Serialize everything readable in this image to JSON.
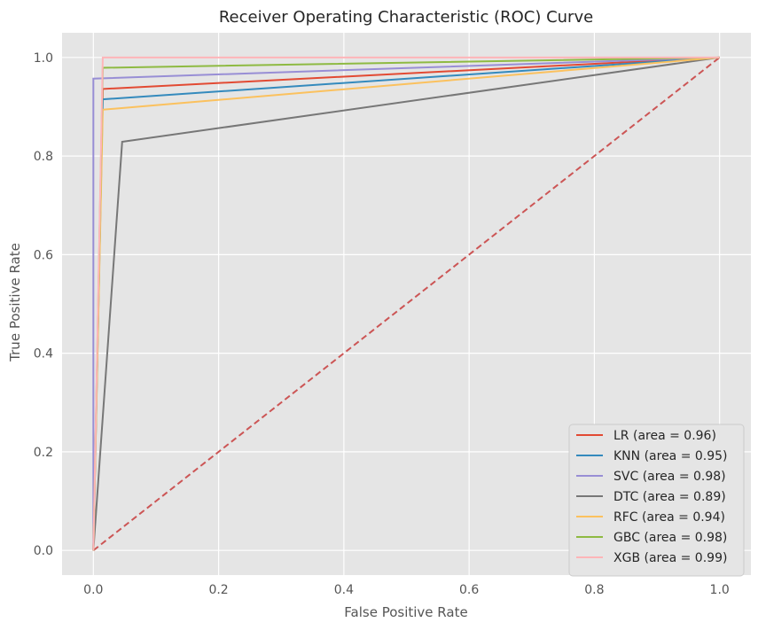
{
  "chart_data": {
    "type": "line",
    "title": "Receiver Operating Characteristic (ROC) Curve",
    "xlabel": "False Positive Rate",
    "ylabel": "True Positive Rate",
    "xlim": [
      -0.05,
      1.05
    ],
    "ylim": [
      -0.05,
      1.05
    ],
    "xticks": [
      "0.0",
      "0.2",
      "0.4",
      "0.6",
      "0.8",
      "1.0"
    ],
    "yticks": [
      "0.0",
      "0.2",
      "0.4",
      "0.6",
      "0.8",
      "1.0"
    ],
    "grid": true,
    "legend_position": "lower-right",
    "series": [
      {
        "name": "LR (area = 0.96)",
        "color": "#E24A33",
        "x": [
          0,
          0.015,
          1
        ],
        "y": [
          0,
          0.936,
          1
        ]
      },
      {
        "name": "KNN (area = 0.95)",
        "color": "#348ABD",
        "x": [
          0,
          0.015,
          1
        ],
        "y": [
          0,
          0.915,
          1
        ]
      },
      {
        "name": "SVC (area = 0.98)",
        "color": "#988ED5",
        "x": [
          0,
          0,
          1
        ],
        "y": [
          0,
          0.957,
          1
        ]
      },
      {
        "name": "DTC (area = 0.89)",
        "color": "#777777",
        "x": [
          0,
          0.046,
          1
        ],
        "y": [
          0,
          0.829,
          1
        ]
      },
      {
        "name": "RFC (area = 0.94)",
        "color": "#FBC15E",
        "x": [
          0,
          0.015,
          1
        ],
        "y": [
          0,
          0.894,
          1
        ]
      },
      {
        "name": "GBC (area = 0.98)",
        "color": "#8EBA42",
        "x": [
          0,
          0.015,
          1
        ],
        "y": [
          0,
          0.979,
          1
        ]
      },
      {
        "name": "XGB (area = 0.99)",
        "color": "#FFB5B8",
        "x": [
          0,
          0.015,
          1
        ],
        "y": [
          0,
          1.0,
          1
        ]
      }
    ],
    "reference_line": {
      "color": "#CC5555",
      "style": "dashed",
      "x": [
        0,
        1
      ],
      "y": [
        0,
        1
      ]
    }
  }
}
